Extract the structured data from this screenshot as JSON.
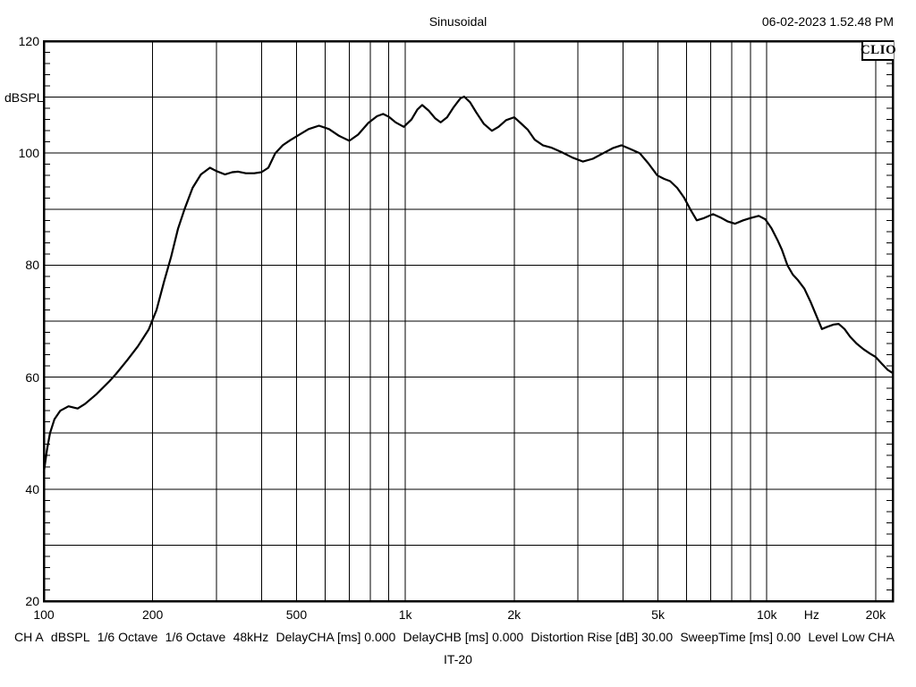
{
  "header": {
    "title": "Sinusoidal",
    "datetime": "06-02-2023 1.52.48 PM"
  },
  "plot": {
    "logo": "CLIO",
    "y_axis_label": "dBSPL"
  },
  "footer": {
    "items": [
      "CH A",
      "dBSPL",
      "1/6 Octave",
      "1/6 Octave",
      "48kHz",
      "DelayCHA [ms] 0.000",
      "DelayCHB [ms] 0.000",
      "Distortion Rise [dB] 30.00",
      "SweepTime [ms] 0.00",
      "Level Low CHA"
    ],
    "model": "IT-20"
  },
  "colors": {
    "line": "#000000",
    "grid": "#000000",
    "background": "#ffffff",
    "text": "#000000"
  },
  "chart_data": {
    "type": "line",
    "title": "Sinusoidal",
    "ylabel": "dBSPL",
    "x_unit": "Hz",
    "x_scale": "log",
    "x_range": [
      100,
      22300
    ],
    "y_range": [
      20,
      120
    ],
    "grid": true,
    "legend_position": "none",
    "y_label_ticks": [
      120,
      100,
      80,
      60,
      40,
      20
    ],
    "y_grid_step": 10,
    "y_minor_step": 2,
    "x_gridlines": [
      200,
      300,
      400,
      500,
      600,
      700,
      800,
      900,
      1000,
      2000,
      3000,
      4000,
      5000,
      6000,
      7000,
      8000,
      9000,
      10000,
      20000
    ],
    "x_tick_labels": [
      {
        "f": 100,
        "label": "100"
      },
      {
        "f": 200,
        "label": "200"
      },
      {
        "f": 500,
        "label": "500"
      },
      {
        "f": 1000,
        "label": "1k"
      },
      {
        "f": 2000,
        "label": "2k"
      },
      {
        "f": 5000,
        "label": "5k"
      },
      {
        "f": 10000,
        "label": "10k"
      },
      {
        "f": 13300,
        "label": "Hz"
      },
      {
        "f": 20000,
        "label": "20k"
      }
    ],
    "series": [
      {
        "name": "CH A dBSPL",
        "points": [
          [
            100,
            43
          ],
          [
            102,
            47
          ],
          [
            104,
            50
          ],
          [
            107,
            52.5
          ],
          [
            111,
            54
          ],
          [
            117,
            54.8
          ],
          [
            124,
            54.4
          ],
          [
            130,
            55.2
          ],
          [
            140,
            57
          ],
          [
            152,
            59.3
          ],
          [
            158,
            60.5
          ],
          [
            170,
            63
          ],
          [
            182,
            65.5
          ],
          [
            195,
            68.5
          ],
          [
            205,
            72
          ],
          [
            215,
            77
          ],
          [
            225,
            81.5
          ],
          [
            235,
            86.5
          ],
          [
            245,
            90
          ],
          [
            258,
            93.8
          ],
          [
            272,
            96.2
          ],
          [
            288,
            97.4
          ],
          [
            300,
            96.8
          ],
          [
            317,
            96.2
          ],
          [
            332,
            96.6
          ],
          [
            345,
            96.7
          ],
          [
            362,
            96.4
          ],
          [
            382,
            96.4
          ],
          [
            400,
            96.6
          ],
          [
            418,
            97.4
          ],
          [
            437,
            100
          ],
          [
            458,
            101.4
          ],
          [
            480,
            102.3
          ],
          [
            500,
            103
          ],
          [
            540,
            104.3
          ],
          [
            577,
            104.9
          ],
          [
            615,
            104.3
          ],
          [
            655,
            103.1
          ],
          [
            700,
            102.2
          ],
          [
            740,
            103.3
          ],
          [
            790,
            105.4
          ],
          [
            835,
            106.6
          ],
          [
            868,
            107
          ],
          [
            900,
            106.5
          ],
          [
            940,
            105.5
          ],
          [
            990,
            104.7
          ],
          [
            1040,
            106
          ],
          [
            1080,
            107.8
          ],
          [
            1113,
            108.6
          ],
          [
            1160,
            107.6
          ],
          [
            1210,
            106.2
          ],
          [
            1252,
            105.5
          ],
          [
            1305,
            106.4
          ],
          [
            1360,
            108.2
          ],
          [
            1420,
            109.8
          ],
          [
            1455,
            110.1
          ],
          [
            1510,
            109.1
          ],
          [
            1570,
            107.3
          ],
          [
            1650,
            105.2
          ],
          [
            1736,
            104
          ],
          [
            1810,
            104.7
          ],
          [
            1900,
            105.9
          ],
          [
            2000,
            106.4
          ],
          [
            2090,
            105.3
          ],
          [
            2180,
            104.2
          ],
          [
            2280,
            102.4
          ],
          [
            2400,
            101.4
          ],
          [
            2530,
            101
          ],
          [
            2700,
            100.2
          ],
          [
            2900,
            99.2
          ],
          [
            3100,
            98.5
          ],
          [
            3300,
            99
          ],
          [
            3530,
            100
          ],
          [
            3750,
            100.9
          ],
          [
            3960,
            101.4
          ],
          [
            4200,
            100.7
          ],
          [
            4450,
            100
          ],
          [
            4700,
            98.2
          ],
          [
            4980,
            96
          ],
          [
            5200,
            95.4
          ],
          [
            5400,
            95
          ],
          [
            5650,
            93.8
          ],
          [
            5900,
            92.1
          ],
          [
            6150,
            89.9
          ],
          [
            6400,
            88
          ],
          [
            6700,
            88.4
          ],
          [
            7100,
            89.1
          ],
          [
            7450,
            88.5
          ],
          [
            7800,
            87.8
          ],
          [
            8160,
            87.4
          ],
          [
            8600,
            88
          ],
          [
            9000,
            88.4
          ],
          [
            9500,
            88.8
          ],
          [
            9900,
            88.2
          ],
          [
            10300,
            86.6
          ],
          [
            10700,
            84.5
          ],
          [
            11000,
            82.8
          ],
          [
            11400,
            80
          ],
          [
            11800,
            78.3
          ],
          [
            12200,
            77.3
          ],
          [
            12700,
            75.8
          ],
          [
            13200,
            73.5
          ],
          [
            13700,
            71
          ],
          [
            14200,
            68.6
          ],
          [
            14700,
            69
          ],
          [
            15300,
            69.4
          ],
          [
            15800,
            69.5
          ],
          [
            16400,
            68.6
          ],
          [
            17000,
            67.2
          ],
          [
            17700,
            66
          ],
          [
            18500,
            65
          ],
          [
            19300,
            64.2
          ],
          [
            20000,
            63.6
          ],
          [
            20800,
            62.4
          ],
          [
            21600,
            61.3
          ],
          [
            22200,
            60.8
          ]
        ]
      }
    ]
  }
}
